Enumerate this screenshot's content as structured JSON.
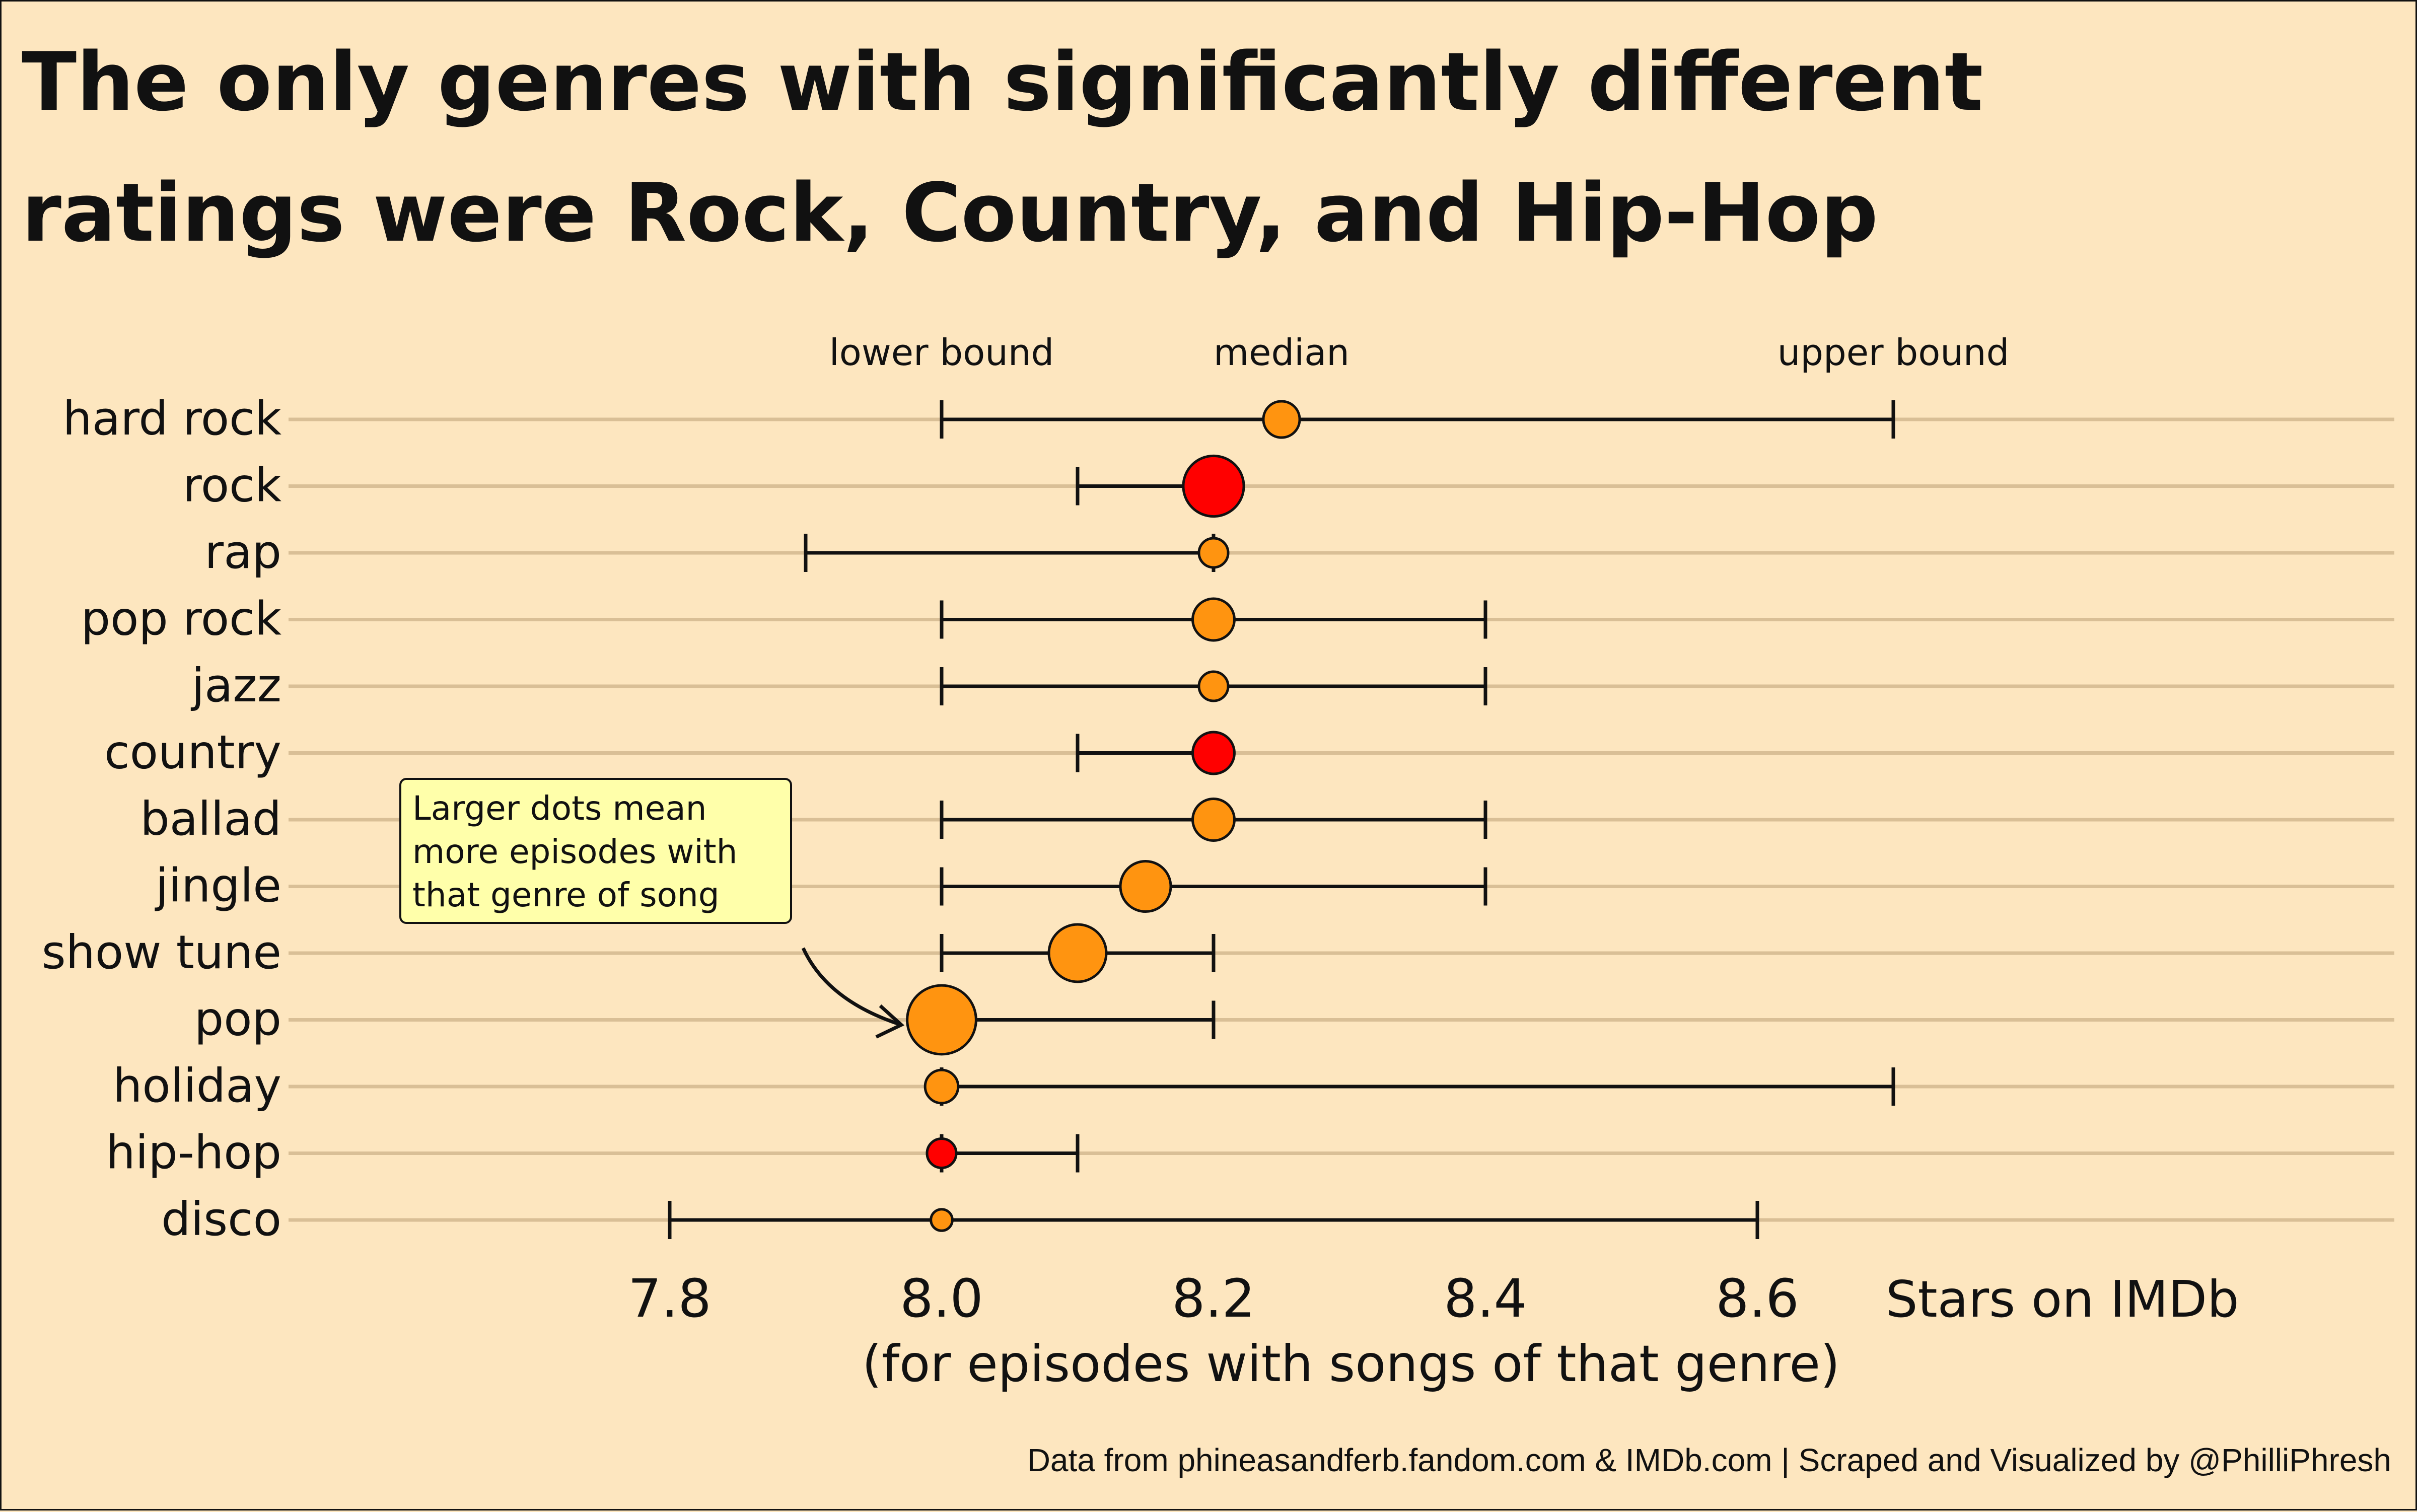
{
  "title": {
    "line1": "The only genres with significantly different",
    "line2": "ratings were Rock, Country, and Hip-Hop"
  },
  "annotation": "Larger dots mean more episodes with that genre of song",
  "credit": "Data from phineasandferb.fandom.com & IMDb.com  |  Scraped and Visualized by @PhilliPhresh",
  "colors": {
    "background": "#fde6bf",
    "significant": "#ff0000",
    "normal": "#ff9410",
    "gridline": "#d9bf96",
    "annotation_bg": "#ffffaa"
  },
  "chart_data": {
    "type": "scatter",
    "title": "The only genres with significantly different ratings were Rock, Country, and Hip-Hop",
    "xlabel": "(for episodes with songs of that genre)",
    "xlabel_unit": "Stars on IMDb",
    "xlim": [
      7.7,
      8.85
    ],
    "x_ticks": [
      "7.8",
      "8.0",
      "8.2",
      "8.4",
      "8.6"
    ],
    "x_tick_values": [
      7.8,
      8.0,
      8.2,
      8.4,
      8.6
    ],
    "legend_labels": {
      "lower": "lower bound",
      "median": "median",
      "upper": "upper bound"
    },
    "grid": "horizontal",
    "series": [
      {
        "genre": "hard rock",
        "lower": 8.0,
        "median": 8.25,
        "upper": 8.7,
        "episodes": 2,
        "significant": false
      },
      {
        "genre": "rock",
        "lower": 8.1,
        "median": 8.2,
        "upper": 8.2,
        "episodes": 8,
        "significant": true
      },
      {
        "genre": "rap",
        "lower": 7.9,
        "median": 8.2,
        "upper": 8.2,
        "episodes": 1,
        "significant": false
      },
      {
        "genre": "pop rock",
        "lower": 8.0,
        "median": 8.2,
        "upper": 8.4,
        "episodes": 3,
        "significant": false
      },
      {
        "genre": "jazz",
        "lower": 8.0,
        "median": 8.2,
        "upper": 8.4,
        "episodes": 1,
        "significant": false
      },
      {
        "genre": "country",
        "lower": 8.1,
        "median": 8.2,
        "upper": 8.2,
        "episodes": 3,
        "significant": true
      },
      {
        "genre": "ballad",
        "lower": 8.0,
        "median": 8.2,
        "upper": 8.4,
        "episodes": 3,
        "significant": false
      },
      {
        "genre": "jingle",
        "lower": 8.0,
        "median": 8.15,
        "upper": 8.4,
        "episodes": 5,
        "significant": false
      },
      {
        "genre": "show tune",
        "lower": 8.0,
        "median": 8.1,
        "upper": 8.2,
        "episodes": 7,
        "significant": false
      },
      {
        "genre": "pop",
        "lower": 8.0,
        "median": 8.0,
        "upper": 8.2,
        "episodes": 11,
        "significant": false
      },
      {
        "genre": "holiday",
        "lower": 8.0,
        "median": 8.0,
        "upper": 8.7,
        "episodes": 1.5,
        "significant": false
      },
      {
        "genre": "hip-hop",
        "lower": 8.0,
        "median": 8.0,
        "upper": 8.1,
        "episodes": 1,
        "significant": true
      },
      {
        "genre": "disco",
        "lower": 7.8,
        "median": 8.0,
        "upper": 8.6,
        "episodes": 0.3,
        "significant": false
      }
    ]
  }
}
